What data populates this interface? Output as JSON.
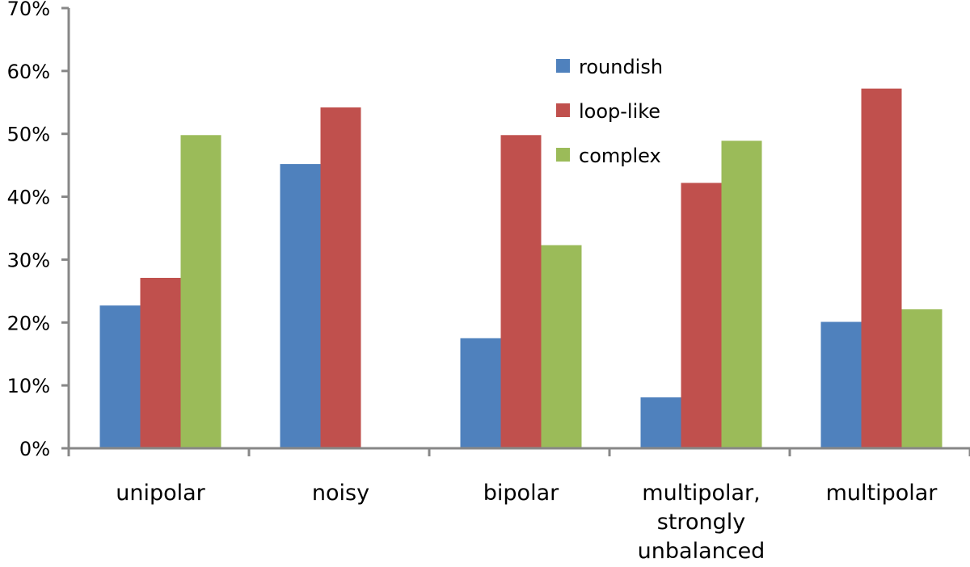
{
  "chart_data": {
    "type": "bar",
    "title": "",
    "xlabel": "",
    "ylabel": "",
    "categories": [
      [
        "unipolar"
      ],
      [
        "noisy"
      ],
      [
        "bipolar"
      ],
      [
        "multipolar,",
        "strongly",
        "unbalanced"
      ],
      [
        "multipolar"
      ]
    ],
    "series": [
      {
        "name": "roundish",
        "color": "#4F81BD",
        "values": [
          22.7,
          45.2,
          17.5,
          8.1,
          20.1
        ]
      },
      {
        "name": "loop-like",
        "color": "#C0504D",
        "values": [
          27.1,
          54.2,
          49.8,
          42.2,
          57.2
        ]
      },
      {
        "name": "complex",
        "color": "#9BBB59",
        "values": [
          49.8,
          0,
          32.3,
          48.9,
          22.1
        ]
      }
    ],
    "ylim": [
      0,
      70
    ],
    "yticks": [
      "0%",
      "10%",
      "20%",
      "30%",
      "40%",
      "50%",
      "60%",
      "70%"
    ],
    "legend": "top-center",
    "grid": false
  }
}
